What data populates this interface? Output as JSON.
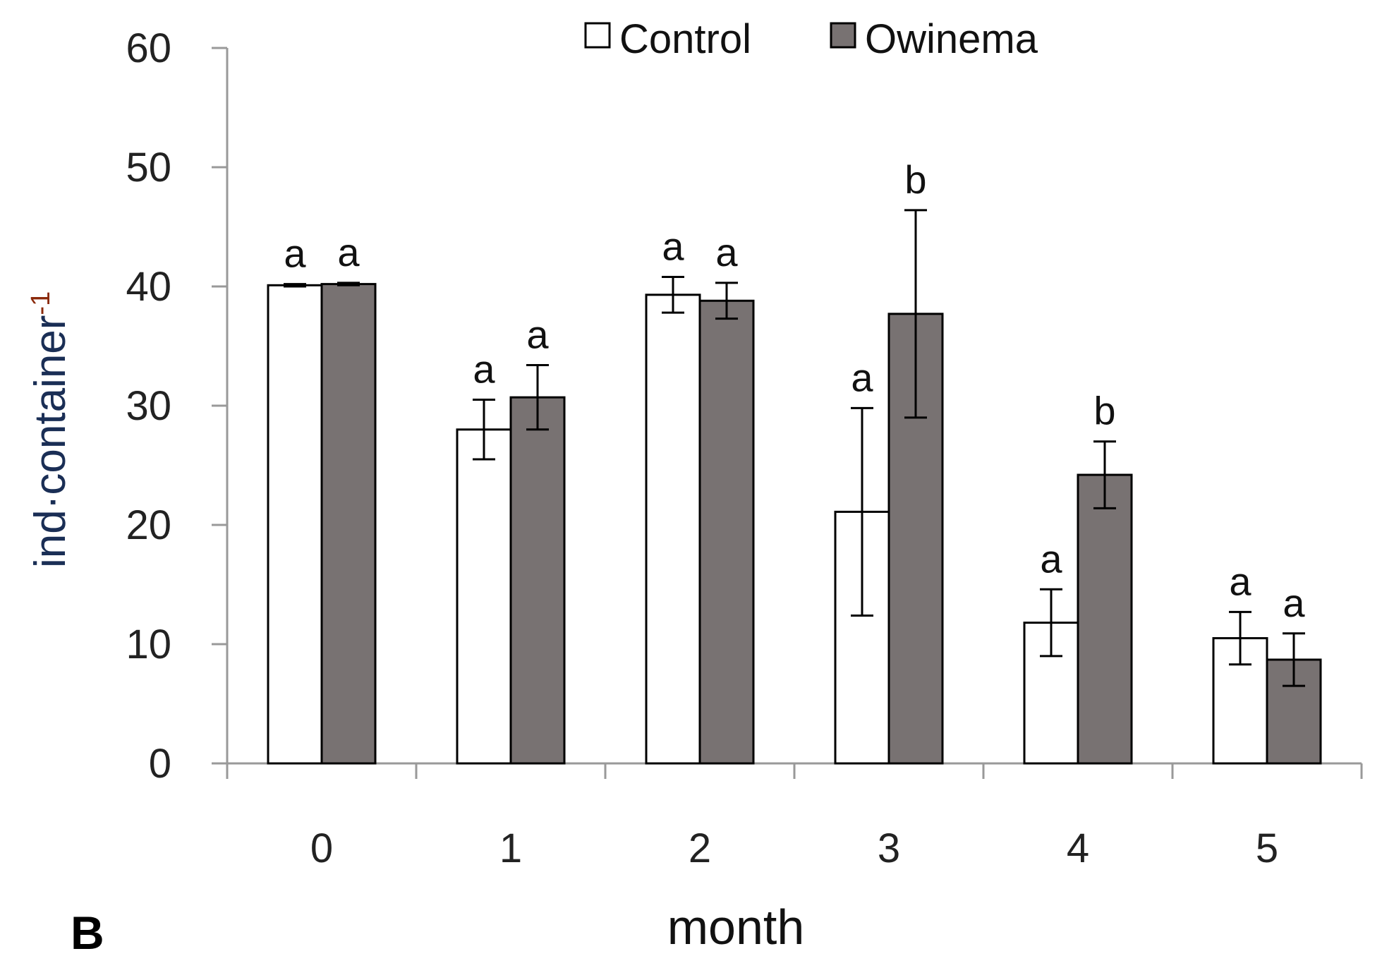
{
  "chart_data": {
    "type": "bar",
    "panel_label": "B",
    "title": "",
    "xlabel": "month",
    "ylabel_main": "ind·container",
    "ylabel_superscript": "-1",
    "ylim": [
      0,
      60
    ],
    "yticks": [
      0,
      10,
      20,
      30,
      40,
      50,
      60
    ],
    "grid": false,
    "legend_position": "top-center",
    "categories": [
      "0",
      "1",
      "2",
      "3",
      "4",
      "5"
    ],
    "series": [
      {
        "name": "Control",
        "values": [
          40.1,
          28.0,
          39.3,
          21.1,
          11.8,
          10.5
        ],
        "errors": [
          0.1,
          2.5,
          1.5,
          8.7,
          2.8,
          2.2
        ],
        "letters": [
          "a",
          "a",
          "a",
          "a",
          "a",
          "a"
        ]
      },
      {
        "name": "Owinema",
        "values": [
          40.2,
          30.7,
          38.8,
          37.7,
          24.2,
          8.7
        ],
        "errors": [
          0.1,
          2.7,
          1.5,
          8.7,
          2.8,
          2.2
        ],
        "letters": [
          "a",
          "a",
          "a",
          "b",
          "b",
          "a"
        ]
      }
    ],
    "colors": {
      "control_fill": "#ffffff",
      "owinema_fill": "#787272",
      "bar_stroke": "#000000",
      "axis": "#999999",
      "error_bar": "#000000",
      "ylabel_color": "#1a2e55",
      "ylabel_super_color": "#8b2a0b"
    }
  }
}
